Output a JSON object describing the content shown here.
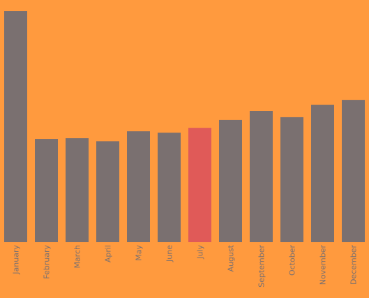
{
  "colors": {
    "background": "#FF9A3E",
    "bar": "#7A7070",
    "highlight": "#E05A58",
    "label": "#7A7070"
  },
  "chart_data": {
    "type": "bar",
    "title": "",
    "xlabel": "",
    "ylabel": "",
    "categories": [
      "January",
      "February",
      "March",
      "April",
      "May",
      "June",
      "July",
      "August",
      "September",
      "October",
      "November",
      "December"
    ],
    "values": [
      100,
      44.7,
      45,
      43.7,
      48,
      47.4,
      49.5,
      52.9,
      56.8,
      54.1,
      59.5,
      61.6
    ],
    "highlighted_category": "July",
    "ylim": [
      0,
      100
    ],
    "grid": false,
    "legend": "none"
  }
}
